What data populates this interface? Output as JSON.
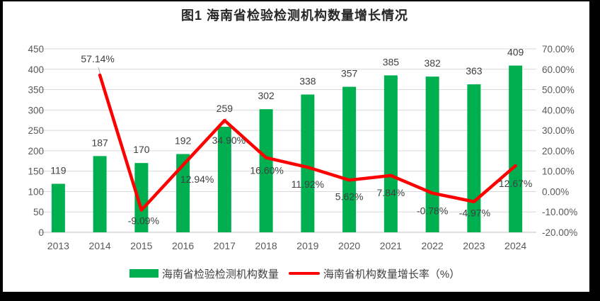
{
  "title": "图1 海南省检验检测机构数量增长情况",
  "legend": {
    "bar_label": "海南省检验检测机构数量",
    "line_label": "海南省机构数量增长率（%）"
  },
  "colors": {
    "bar": "#00B050",
    "line": "#FF0000",
    "grid": "#D9D9D9",
    "axis_line": "#BFBFBF",
    "tick_text": "#595959",
    "data_label": "#404040",
    "leader": "#A6A6A6",
    "frame": "#000000",
    "background": "#FFFFFF"
  },
  "chart_data": {
    "type": "bar",
    "combo": "bar+line",
    "title": "图1 海南省检验检测机构数量增长情况",
    "categories": [
      "2013",
      "2014",
      "2015",
      "2016",
      "2017",
      "2018",
      "2019",
      "2020",
      "2021",
      "2022",
      "2023",
      "2024"
    ],
    "series": [
      {
        "name": "海南省检验检测机构数量",
        "type": "bar",
        "axis": "left",
        "color": "#00B050",
        "values": [
          119,
          187,
          170,
          192,
          259,
          302,
          338,
          357,
          385,
          382,
          363,
          409
        ],
        "point_labels": [
          "119",
          "187",
          "170",
          "192",
          "259",
          "302",
          "338",
          "357",
          "385",
          "382",
          "363",
          "409"
        ]
      },
      {
        "name": "海南省机构数量增长率（%）",
        "type": "line",
        "axis": "right",
        "color": "#FF0000",
        "values": [
          null,
          57.14,
          -9.09,
          12.94,
          34.9,
          16.6,
          11.92,
          5.62,
          7.84,
          -0.78,
          -4.97,
          12.67
        ],
        "point_labels": [
          null,
          "57.14%",
          "-9.09%",
          "12.94%",
          "34.90%",
          "16.60%",
          "11.92%",
          "5.62%",
          "7.84%",
          "-0.78%",
          "-4.97%",
          "12.67%"
        ]
      }
    ],
    "left_axis": {
      "min": 0,
      "max": 450,
      "step": 50,
      "tick_labels": [
        "450",
        "400",
        "350",
        "300",
        "250",
        "200",
        "150",
        "100",
        "50",
        "0"
      ]
    },
    "right_axis": {
      "min": -20,
      "max": 70,
      "step": 10,
      "tick_labels": [
        "70.00%",
        "60.00%",
        "50.00%",
        "40.00%",
        "30.00%",
        "20.00%",
        "10.00%",
        "0.00%",
        "-10.00%",
        "-20.00%"
      ]
    },
    "grid": true,
    "legend_position": "bottom"
  }
}
